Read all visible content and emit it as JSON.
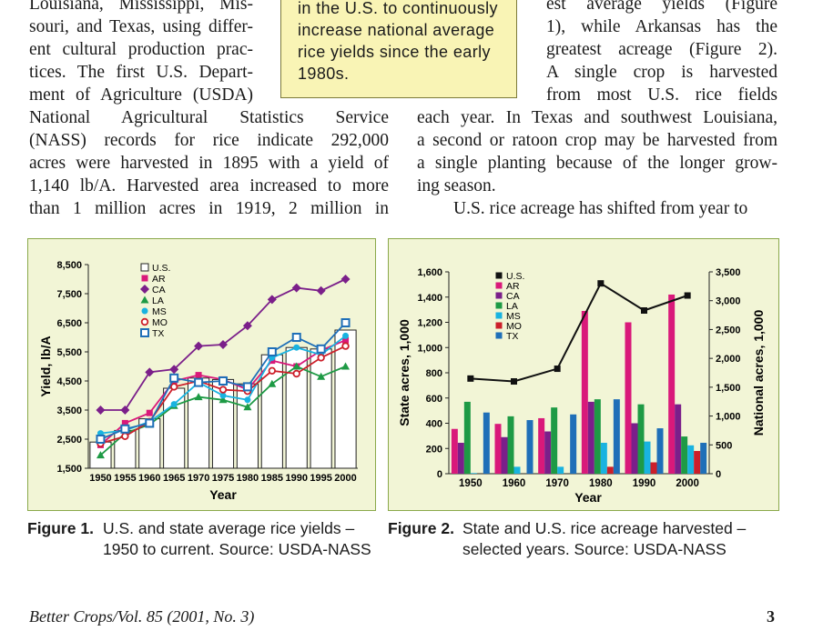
{
  "text": {
    "left_top_lines": [
      "Louisiana, Mississippi, Mis-",
      "souri, and Texas, using differ-",
      "ent cultural production prac-",
      "tices. The first U.S. Depart-",
      "ment of Agriculture (USDA)"
    ],
    "left_full_lines": [
      "National Agricultural Statistics Service",
      "(NASS) records for rice indicate 292,000",
      "acres were harvested in 1895 with a yield of",
      "1,140 lb/A. Harvested area increased to more",
      "than 1 million acres in 1919, 2 million in"
    ],
    "right_top_lines": [
      "est average yields (Figure",
      "1), while Arkansas has the",
      "greatest acreage (Figure 2).",
      "A single crop is harvested",
      "from most U.S. rice fields"
    ],
    "right_full_lines": [
      "each year. In Texas and southwest Louisiana,",
      "a second or ratoon crop may be harvested from",
      "a single planting because of the longer grow-",
      "ing season."
    ],
    "right_para2": "U.S. rice acreage has shifted from year to",
    "callout_lines": [
      "in the U.S. to continuously",
      "increase national average",
      "rice yields since the early",
      "1980s."
    ]
  },
  "captions": {
    "fig1_label": "Figure 1.",
    "fig1_line1": "U.S. and state average rice yields –",
    "fig1_line2": "1950 to current. Source: USDA-NASS",
    "fig2_label": "Figure 2.",
    "fig2_line1": "State and U.S. rice acreage harvested –",
    "fig2_line2": "selected years. Source: USDA-NASS"
  },
  "footer": {
    "journal": "Better Crops/Vol. 85 (2001, No. 3)",
    "page": "3"
  },
  "colors": {
    "AR": "#d9197a",
    "CA": "#7b1f8a",
    "LA": "#1e9a45",
    "MS": "#19b3e0",
    "MO": "#cc1f2a",
    "TX": "#1f6fb8",
    "US": "#111111",
    "panel": "#f2f5d6"
  },
  "chart_data": [
    {
      "type": "line",
      "xlabel": "Year",
      "ylabel": "Yield, lb/A",
      "ylim": [
        1500,
        8500
      ],
      "x": [
        1950,
        1955,
        1960,
        1965,
        1970,
        1975,
        1980,
        1985,
        1990,
        1995,
        2000
      ],
      "yticks": [
        "1,500",
        "2,500",
        "3,500",
        "4,500",
        "5,500",
        "6,500",
        "7,500",
        "8,500"
      ],
      "xticks": [
        "1950",
        "1955",
        "1960",
        "1965",
        "1970",
        "1975",
        "1980",
        "1985",
        "1990",
        "1995",
        "2000"
      ],
      "bars": {
        "name": "U.S.",
        "values": [
          2400,
          2800,
          3200,
          4250,
          4600,
          4550,
          4400,
          5400,
          5650,
          5600,
          6250
        ]
      },
      "series": [
        {
          "name": "AR",
          "values": [
            2300,
            3050,
            3400,
            4500,
            4700,
            4550,
            4200,
            5200,
            5000,
            5550,
            5900
          ]
        },
        {
          "name": "CA",
          "values": [
            3500,
            3500,
            4800,
            4900,
            5700,
            5750,
            6400,
            7300,
            7700,
            7600,
            8000
          ]
        },
        {
          "name": "LA",
          "values": [
            1950,
            2700,
            3000,
            3650,
            3950,
            3850,
            3600,
            4400,
            5000,
            4650,
            5000
          ]
        },
        {
          "name": "MS",
          "values": [
            2700,
            2800,
            3100,
            3700,
            4450,
            4000,
            3850,
            5300,
            5650,
            5400,
            6050
          ]
        },
        {
          "name": "MO",
          "values": [
            2350,
            2600,
            3100,
            4300,
            4500,
            4200,
            4150,
            4850,
            4750,
            5300,
            5700
          ]
        },
        {
          "name": "TX",
          "values": [
            2500,
            2850,
            3050,
            4600,
            4450,
            4500,
            4300,
            5500,
            6000,
            5600,
            6500
          ]
        }
      ],
      "legend": [
        "U.S.",
        "AR",
        "CA",
        "LA",
        "MS",
        "MO",
        "TX"
      ]
    },
    {
      "type": "bar",
      "xlabel": "Year",
      "ylabel": "State acres, 1,000",
      "ylabel_right": "National acres, 1,000",
      "ylim": [
        0,
        1600
      ],
      "ylim_right": [
        0,
        3500
      ],
      "yticks": [
        "0",
        "200",
        "400",
        "600",
        "800",
        "1,000",
        "1,200",
        "1,400",
        "1,600"
      ],
      "yticks_right": [
        "0",
        "500",
        "1,000",
        "1,500",
        "2,000",
        "2,500",
        "3,000",
        "3,500"
      ],
      "categories": [
        "1950",
        "1960",
        "1970",
        "1980",
        "1990",
        "2000"
      ],
      "series": [
        {
          "name": "AR",
          "values": [
            355,
            395,
            440,
            1290,
            1200,
            1420
          ]
        },
        {
          "name": "CA",
          "values": [
            245,
            290,
            335,
            570,
            400,
            550
          ]
        },
        {
          "name": "LA",
          "values": [
            570,
            455,
            525,
            590,
            550,
            295
          ]
        },
        {
          "name": "MS",
          "values": [
            5,
            55,
            55,
            245,
            255,
            225
          ]
        },
        {
          "name": "MO",
          "values": [
            0,
            0,
            0,
            55,
            90,
            180
          ]
        },
        {
          "name": "TX",
          "values": [
            485,
            425,
            470,
            590,
            360,
            245
          ]
        }
      ],
      "line": {
        "name": "U.S.",
        "values": [
          1650,
          1600,
          1820,
          3300,
          2830,
          3090
        ]
      },
      "legend": [
        "U.S.",
        "AR",
        "CA",
        "LA",
        "MS",
        "MO",
        "TX"
      ]
    }
  ]
}
